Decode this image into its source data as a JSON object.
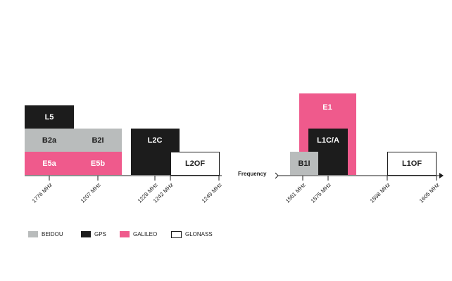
{
  "blocks": {
    "left": [
      "L5",
      "B2a",
      "B2I",
      "E5a",
      "E5b",
      "L2C",
      "L2OF"
    ],
    "right": [
      "E1",
      "L1C/A",
      "B1I",
      "L1OF"
    ]
  },
  "axis_label": "Frequency",
  "ticks": {
    "left": [
      "1776 MHz",
      "1207 MHz",
      "1228 MHz",
      "1242 MHz",
      "1249 MHz"
    ],
    "right": [
      "1561 MHz",
      "1575 MHz",
      "1598 MHz",
      "1605 MHz"
    ]
  },
  "legend": [
    "BEIDOU",
    "GPS",
    "GALILEO",
    "GLONASS"
  ]
}
